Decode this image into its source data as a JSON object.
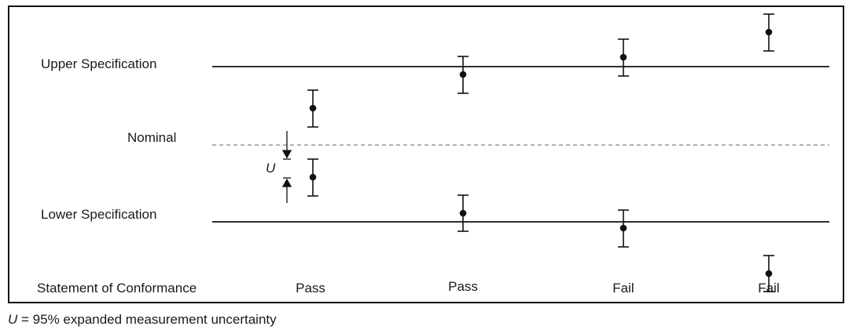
{
  "labels": {
    "upper": "Upper Specification",
    "nominal": "Nominal",
    "lower": "Lower Specification",
    "statement": "Statement of Conformance",
    "u_symbol": "U"
  },
  "results": [
    "Pass",
    "Pass",
    "Fail",
    "Fail"
  ],
  "footnote": {
    "symbol": "U",
    "text": " = 95% expanded measurement uncertainty"
  },
  "colors": {
    "line": "#111111",
    "dashed": "#999999"
  }
}
